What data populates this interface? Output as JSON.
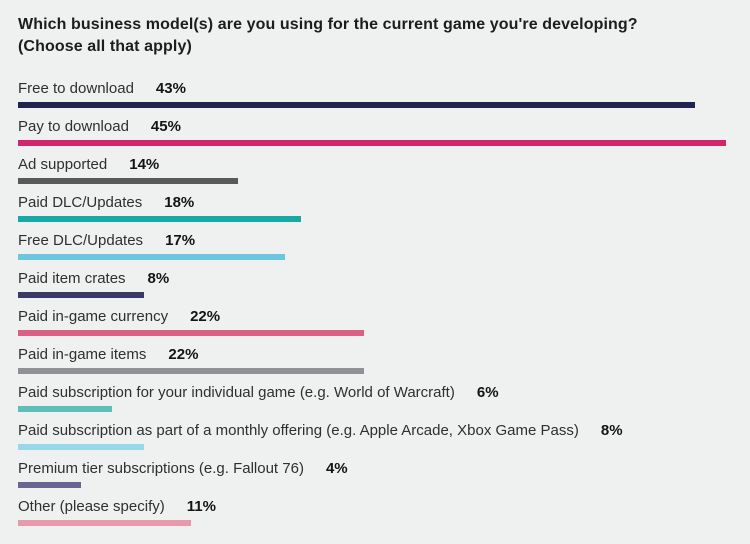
{
  "page": {
    "background": "#eff0f0"
  },
  "chart_data": {
    "type": "bar",
    "orientation": "horizontal",
    "title": "Which business model(s) are you using for the current game you're developing? (Choose all that apply)",
    "title_line1": "Which business model(s) are you using for the current game you're developing?",
    "title_line2": "(Choose all that apply)",
    "value_axis_max": 45,
    "value_format": "percent",
    "grid": false,
    "legend": false,
    "bars": [
      {
        "label": "Free to download",
        "value": 43,
        "value_label": "43%",
        "color": "#20244e"
      },
      {
        "label": "Pay to download",
        "value": 45,
        "value_label": "45%",
        "color": "#d3256c"
      },
      {
        "label": "Ad supported",
        "value": 14,
        "value_label": "14%",
        "color": "#58595b"
      },
      {
        "label": "Paid DLC/Updates",
        "value": 18,
        "value_label": "18%",
        "color": "#18a8a5"
      },
      {
        "label": "Free DLC/Updates",
        "value": 17,
        "value_label": "17%",
        "color": "#6bc6e2"
      },
      {
        "label": "Paid item crates",
        "value": 8,
        "value_label": "8%",
        "color": "#3d3965"
      },
      {
        "label": "Paid in-game currency",
        "value": 22,
        "value_label": "22%",
        "color": "#da6085"
      },
      {
        "label": "Paid in-game items",
        "value": 22,
        "value_label": "22%",
        "color": "#919195"
      },
      {
        "label": "Paid subscription for your individual game (e.g. World of Warcraft)",
        "value": 6,
        "value_label": "6%",
        "color": "#60beba"
      },
      {
        "label": "Paid subscription as part of a monthly offering (e.g. Apple Arcade, Xbox Game Pass)",
        "value": 8,
        "value_label": "8%",
        "color": "#97d8ea"
      },
      {
        "label": "Premium tier subscriptions (e.g. Fallout 76)",
        "value": 4,
        "value_label": "4%",
        "color": "#6b6390"
      },
      {
        "label": "Other (please specify)",
        "value": 11,
        "value_label": "11%",
        "color": "#e899ac"
      }
    ]
  }
}
